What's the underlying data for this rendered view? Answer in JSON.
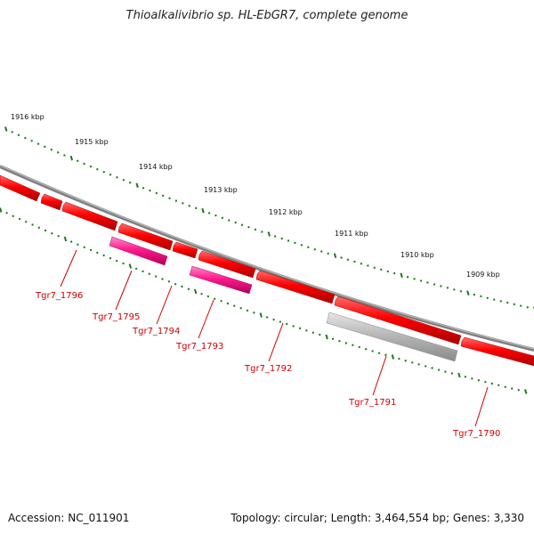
{
  "title": "Thioalkalivibrio sp. HL-EbGR7, complete genome",
  "footer": {
    "accession": "Accession: NC_011901",
    "summary": "Topology: circular; Length: 3,464,554 bp; Genes: 3,330"
  },
  "scale_labels": [
    "1916 kbp",
    "1915 kbp",
    "1914 kbp",
    "1913 kbp",
    "1912 kbp",
    "1911 kbp",
    "1910 kbp",
    "1909 kbp"
  ],
  "genes": [
    {
      "locus": "Tgr7_1796",
      "color": "#ff0000"
    },
    {
      "locus": "Tgr7_1795",
      "color": "#ff0000"
    },
    {
      "locus": "Tgr7_1794",
      "color": "#ff0000"
    },
    {
      "locus": "Tgr7_1793",
      "color": "#ff0000"
    },
    {
      "locus": "Tgr7_1792",
      "color": "#ff0000"
    },
    {
      "locus": "Tgr7_1791",
      "color": "#ff0000"
    },
    {
      "locus": "Tgr7_1790",
      "color": "#ff0000"
    }
  ],
  "features": [
    {
      "kind": "CDS",
      "color": "#ff1a8c"
    },
    {
      "kind": "CDS",
      "color": "#ff1a8c"
    },
    {
      "kind": "misc",
      "color": "#b8b8b8"
    }
  ],
  "colors": {
    "backbone": "#808080",
    "gene": "#ff0000",
    "pink_feature": "#ff1a8c",
    "grey_feature": "#b8b8b8",
    "ticks": "#1a7a1a",
    "label": "#cc0000"
  }
}
